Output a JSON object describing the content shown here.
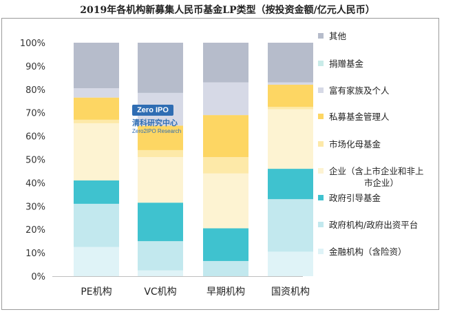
{
  "title": "2019年各机构新募集人民币基金LP类型（按投资金额/亿元人民币）",
  "watermark": {
    "logo": "Zero IPO",
    "cn": "清科研究中心",
    "en": "Zero2IPO Research"
  },
  "chart_data": {
    "type": "bar",
    "stacked": true,
    "percent": true,
    "ylim": [
      0,
      100
    ],
    "yticks": [
      "0%",
      "10%",
      "20%",
      "30%",
      "40%",
      "50%",
      "60%",
      "70%",
      "80%",
      "90%",
      "100%"
    ],
    "categories": [
      "PE机构",
      "VC机构",
      "早期机构",
      "国资机构"
    ],
    "series": [
      {
        "name": "金融机构（含险资）",
        "color": "#dff3f7",
        "values": [
          12.5,
          2.5,
          0.0,
          10.5
        ]
      },
      {
        "name": "政府机构/政府出资平台",
        "color": "#c2e8ee",
        "values": [
          18.5,
          12.5,
          6.5,
          22.5
        ]
      },
      {
        "name": "政府引导基金",
        "color": "#3fc2cf",
        "values": [
          10.0,
          16.5,
          14.0,
          13.0
        ]
      },
      {
        "name": "企业（含上市企业和非上市企业）",
        "color": "#fdf3d2",
        "values": [
          24.5,
          19.5,
          23.5,
          25.5
        ]
      },
      {
        "name": "市场化母基金",
        "color": "#fde9a8",
        "values": [
          1.5,
          3.0,
          7.0,
          1.0
        ]
      },
      {
        "name": "私募基金管理人",
        "color": "#fdd663",
        "values": [
          9.5,
          10.5,
          18.0,
          9.5
        ]
      },
      {
        "name": "富有家族及个人",
        "color": "#d6d9e6",
        "values": [
          4.0,
          14.0,
          14.0,
          1.0
        ]
      },
      {
        "name": "捐赠基金",
        "color": "#c9ebe8",
        "values": [
          0.0,
          0.0,
          0.0,
          0.0
        ]
      },
      {
        "name": "其他",
        "color": "#b6bccb",
        "values": [
          19.5,
          21.5,
          17.0,
          17.0
        ]
      }
    ],
    "legend_position": "right"
  }
}
